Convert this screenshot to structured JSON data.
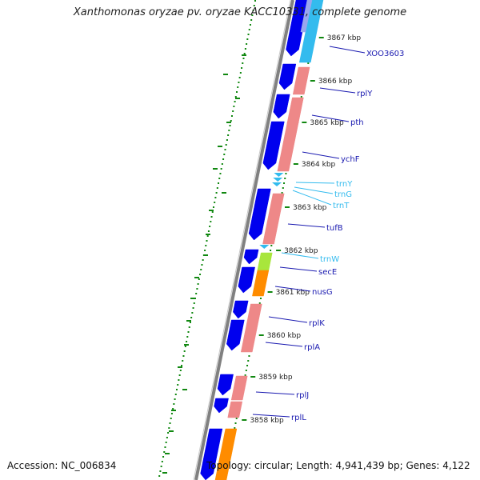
{
  "title": "Xanthomonas oryzae pv. oryzae KACC10331, complete genome",
  "accession": "Accession: NC_006834",
  "topology": "Topology: circular; Length: 4,941,439 bp; Genes: 4,122",
  "colors": {
    "backbone": "#808080",
    "cds_forward": "#0000ee",
    "cds_reverse": "#ee8888",
    "trna": "#33bbee",
    "orange_feature": "#ff8c00",
    "green_feature": "#a8e63c",
    "gc_dots": "#118811",
    "gene_label": "#1a1ab0",
    "trna_label": "#33bbee"
  },
  "kbp_ticks": [
    {
      "label": "3867 kbp"
    },
    {
      "label": "3866 kbp"
    },
    {
      "label": "3865 kbp"
    },
    {
      "label": "3864 kbp"
    },
    {
      "label": "3863 kbp"
    },
    {
      "label": "3862 kbp"
    },
    {
      "label": "3861 kbp"
    },
    {
      "label": "3860 kbp"
    },
    {
      "label": "3859 kbp"
    },
    {
      "label": "3858 kbp"
    }
  ],
  "gene_labels": [
    {
      "text": "XOO3603",
      "kind": "cds"
    },
    {
      "text": "rplY",
      "kind": "cds"
    },
    {
      "text": "pth",
      "kind": "cds"
    },
    {
      "text": "ychF",
      "kind": "cds"
    },
    {
      "text": "trnY",
      "kind": "trna"
    },
    {
      "text": "trnG",
      "kind": "trna"
    },
    {
      "text": "trnT",
      "kind": "trna"
    },
    {
      "text": "tufB",
      "kind": "cds"
    },
    {
      "text": "trnW",
      "kind": "trna"
    },
    {
      "text": "secE",
      "kind": "cds"
    },
    {
      "text": "nusG",
      "kind": "cds"
    },
    {
      "text": "rplK",
      "kind": "cds"
    },
    {
      "text": "rplA",
      "kind": "cds"
    },
    {
      "text": "rplJ",
      "kind": "cds"
    },
    {
      "text": "rplL",
      "kind": "cds"
    }
  ]
}
